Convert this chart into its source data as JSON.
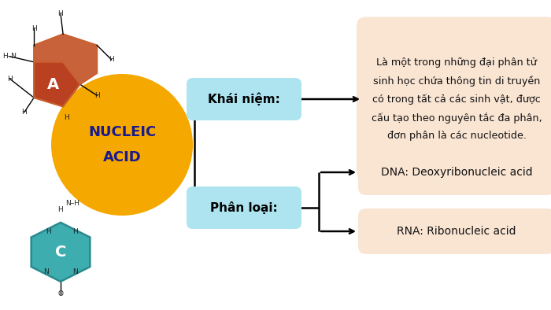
{
  "bg_color": "#ffffff",
  "circle_color": "#F5A800",
  "circle_text": "NUCLEIC\nACID",
  "circle_text_color": "#1a1a8c",
  "box1_label": "Khái niệm:",
  "box2_label": "Phân loại:",
  "box_color": "#ADE4F0",
  "box_text_color": "#000000",
  "desc1_text": "Là một trong những đại phân tử\nsinh học chứa thông tin di truyền\ncó trong tất cả các sinh vật, được\ncấu tạo theo nguyên tắc đa phân,\nđơn phân là các nucleotide.",
  "desc1_bg": "#FAE5D3",
  "dna_text": "DNA: Deoxyribonucleic acid",
  "rna_text": "RNA: Ribonucleic acid",
  "classify_bg": "#FAE5D3",
  "mol_A_dark": "#B94020",
  "mol_A_light": "#C8623A",
  "mol_A_edge": "#C86030",
  "mol_C_fill": "#3EADB0",
  "mol_C_edge": "#2A8A8D"
}
